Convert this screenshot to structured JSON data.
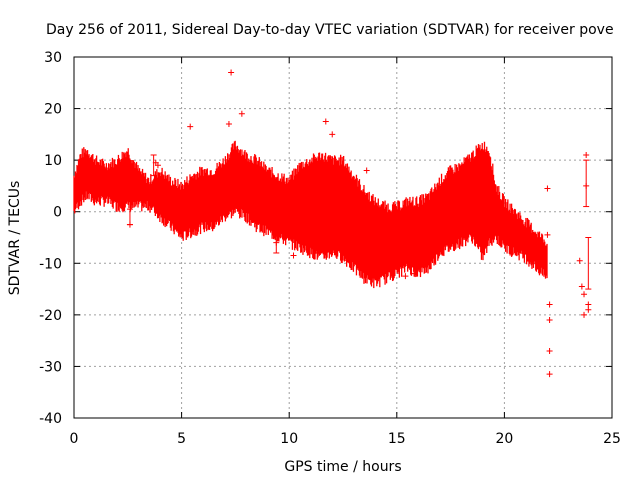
{
  "chart_data": {
    "type": "scatter",
    "title": "Day 256 of 2011, Sidereal Day-to-day VTEC variation (SDTVAR) for receiver pove",
    "xlabel": "GPS time / hours",
    "ylabel": "SDTVAR / TECUs",
    "xlim": [
      0,
      25
    ],
    "ylim": [
      -40,
      30
    ],
    "xticks": [
      0,
      5,
      10,
      15,
      20,
      25
    ],
    "yticks": [
      -40,
      -30,
      -20,
      -10,
      0,
      10,
      20,
      30
    ],
    "grid": true,
    "series_color": "#ff0000",
    "envelope": {
      "description": "approximate upper / lower bounds of the dense error-bar band",
      "x": [
        0,
        0.3,
        0.6,
        1.0,
        1.5,
        2.0,
        2.5,
        3.0,
        3.5,
        4.0,
        4.5,
        5.0,
        5.5,
        6.0,
        6.5,
        7.0,
        7.5,
        8.0,
        8.5,
        9.0,
        9.5,
        10.0,
        10.5,
        11.0,
        11.5,
        12.0,
        12.5,
        13.0,
        13.5,
        14.0,
        14.5,
        15.0,
        15.5,
        16.0,
        16.5,
        17.0,
        17.5,
        18.0,
        18.5,
        19.0,
        19.3,
        19.6,
        20.0,
        20.5,
        21.0,
        21.5,
        22.0
      ],
      "upper": [
        7,
        11,
        12,
        10,
        9,
        10,
        12,
        8,
        6,
        8,
        6,
        5,
        7,
        8,
        8,
        10,
        13,
        11,
        10,
        8,
        7,
        6,
        9,
        10,
        11,
        10,
        10,
        7,
        4,
        2,
        1,
        1,
        2,
        2,
        3,
        6,
        8,
        9,
        11,
        13,
        12,
        5,
        2,
        0,
        -2,
        -4,
        -6
      ],
      "lower": [
        0,
        2,
        3,
        2,
        2,
        1,
        1,
        1,
        1,
        -1,
        -3,
        -5,
        -4,
        -3,
        -3,
        -1,
        0,
        -1,
        -3,
        -4,
        -5,
        -6,
        -7,
        -8,
        -9,
        -8,
        -9,
        -11,
        -13,
        -14,
        -13,
        -12,
        -11,
        -12,
        -11,
        -8,
        -7,
        -6,
        -5,
        -9,
        -6,
        -5,
        -7,
        -8,
        -9,
        -11,
        -13
      ]
    },
    "outliers": [
      {
        "x": 7.3,
        "y": 27
      },
      {
        "x": 7.8,
        "y": 19
      },
      {
        "x": 5.4,
        "y": 16.5
      },
      {
        "x": 11.7,
        "y": 17.5
      },
      {
        "x": 12.0,
        "y": 15
      },
      {
        "x": 7.2,
        "y": 17
      },
      {
        "x": 13.6,
        "y": 8
      },
      {
        "x": 3.8,
        "y": 9.5
      },
      {
        "x": 3.9,
        "y": 9
      },
      {
        "x": 2.6,
        "y": -2.5
      },
      {
        "x": 10.2,
        "y": -8.5
      },
      {
        "x": 11.3,
        "y": -7.5
      },
      {
        "x": 11.4,
        "y": -8
      },
      {
        "x": 15.4,
        "y": -12.5
      },
      {
        "x": 15.8,
        "y": -12
      },
      {
        "x": 9.4,
        "y": -6
      },
      {
        "x": 22.0,
        "y": 4.5
      },
      {
        "x": 22.0,
        "y": -4.5
      },
      {
        "x": 22.1,
        "y": -18
      },
      {
        "x": 22.1,
        "y": -21
      },
      {
        "x": 22.1,
        "y": -27
      },
      {
        "x": 22.1,
        "y": -31.5
      },
      {
        "x": 23.5,
        "y": -9.5
      },
      {
        "x": 23.6,
        "y": -14.5
      },
      {
        "x": 23.7,
        "y": -16
      },
      {
        "x": 23.7,
        "y": -20
      },
      {
        "x": 23.8,
        "y": 11
      },
      {
        "x": 23.8,
        "y": 5
      },
      {
        "x": 23.9,
        "y": -18
      },
      {
        "x": 23.9,
        "y": -19
      }
    ],
    "error_bars": [
      {
        "x": 2.6,
        "low": -2.5,
        "high": 0.5
      },
      {
        "x": 3.7,
        "low": 7,
        "high": 11
      },
      {
        "x": 9.4,
        "low": -8,
        "high": -3
      },
      {
        "x": 23.8,
        "low": 1,
        "high": 10
      },
      {
        "x": 23.9,
        "low": -15,
        "high": -5
      }
    ]
  }
}
